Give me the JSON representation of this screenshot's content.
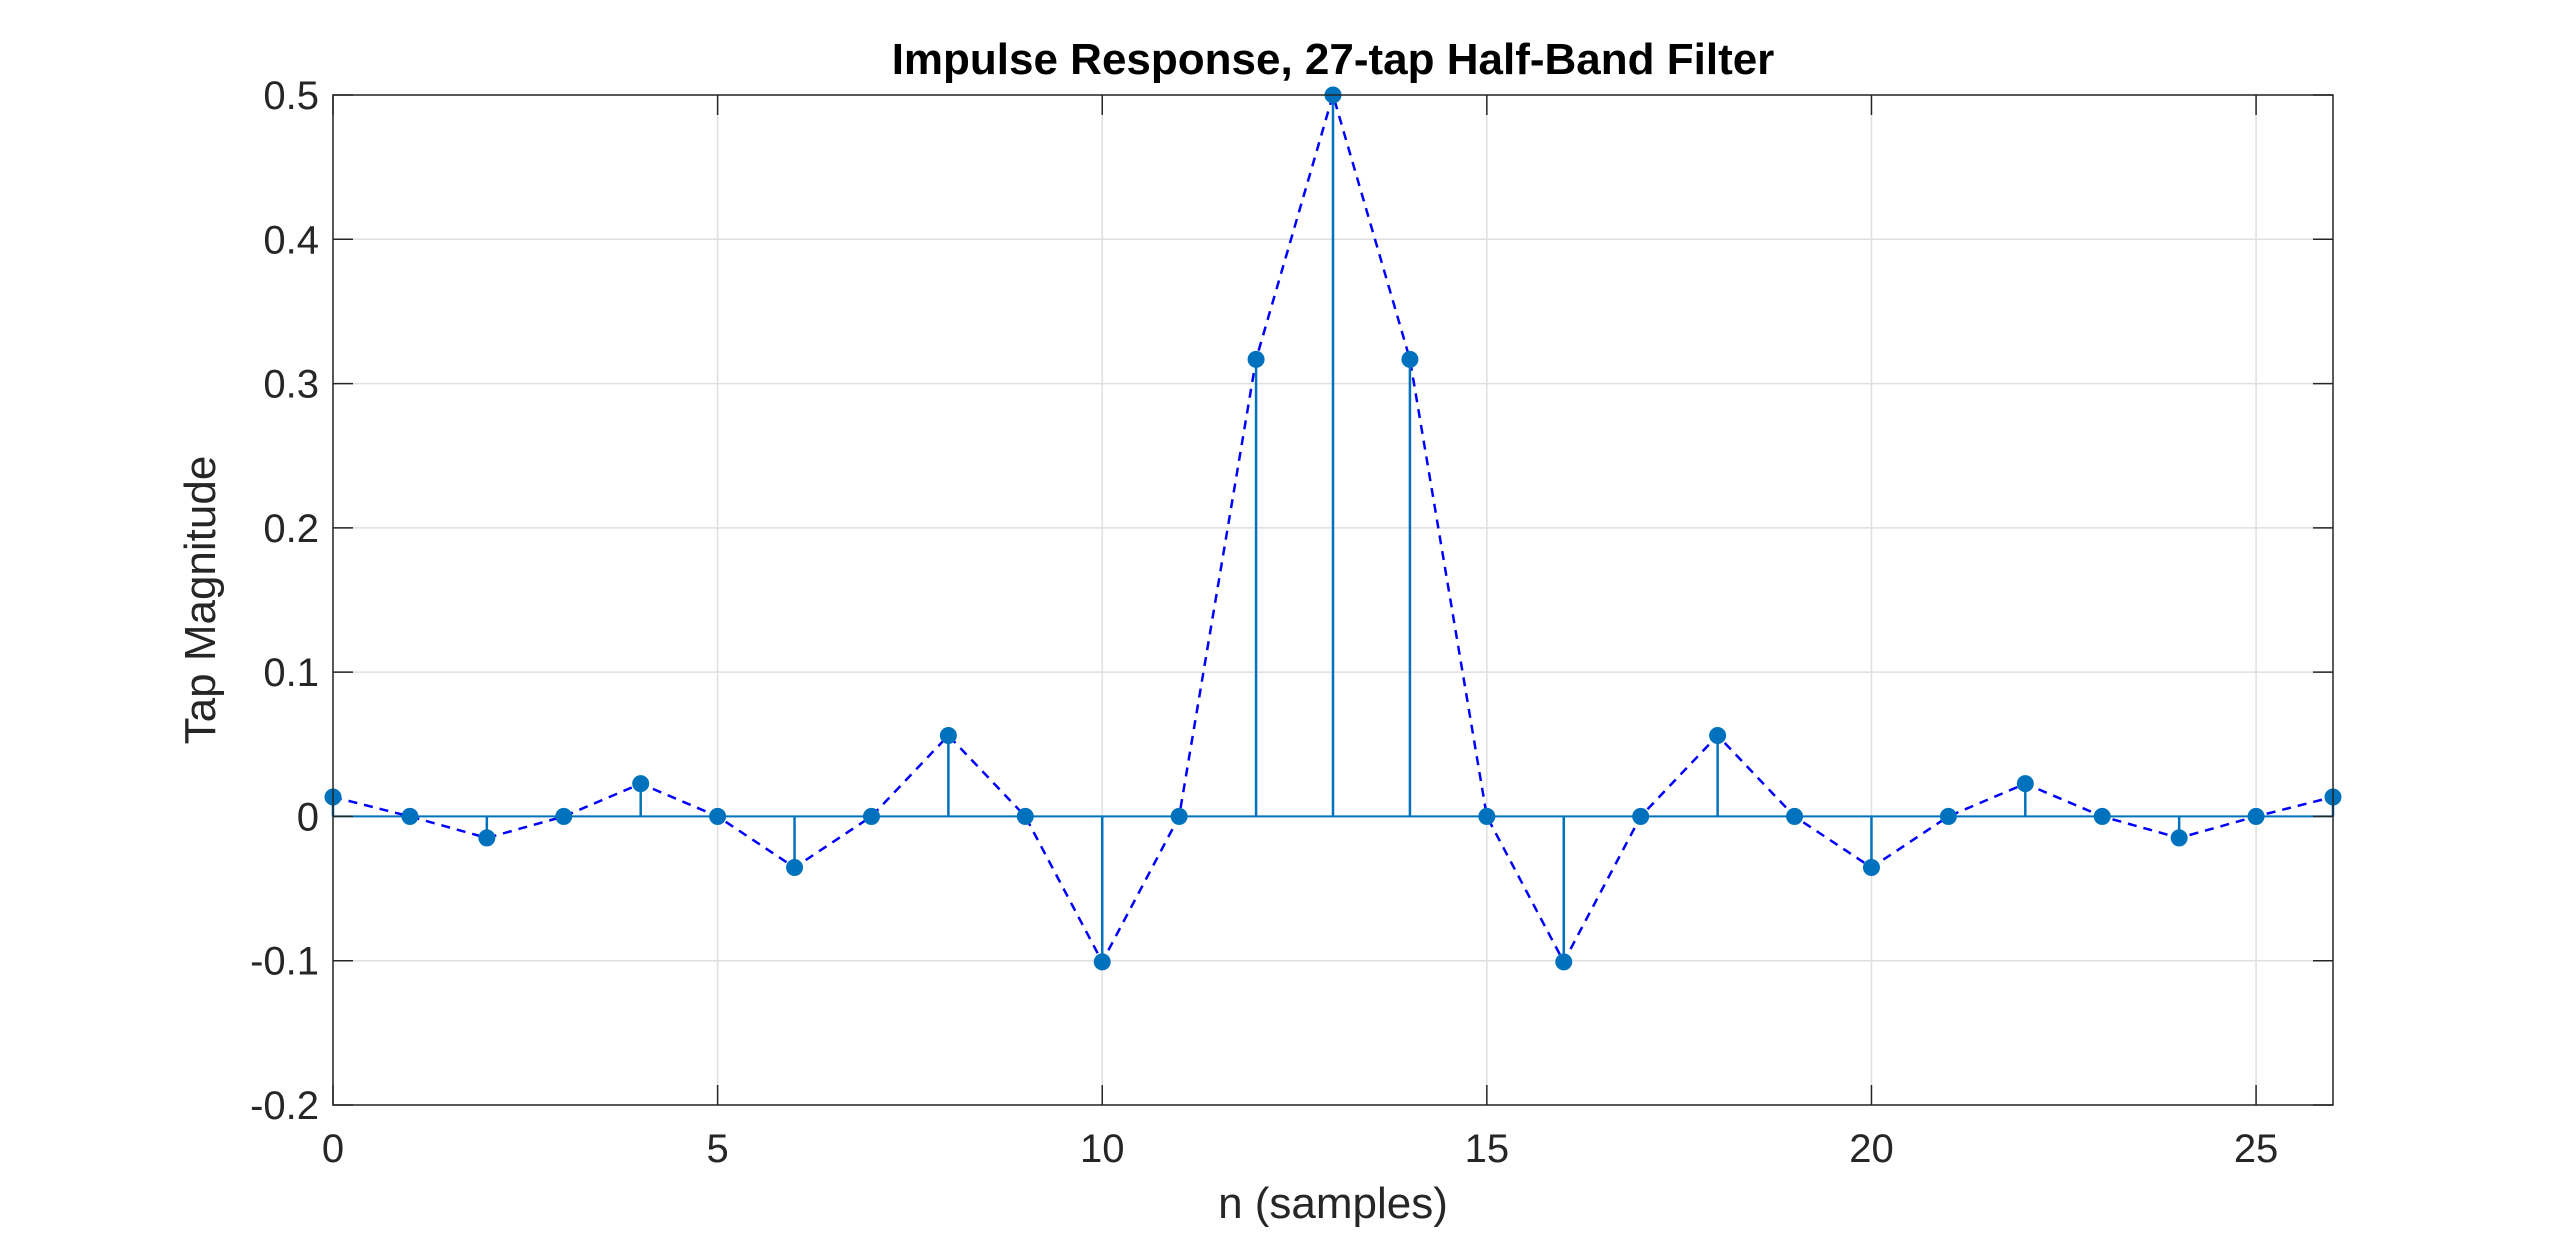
{
  "chart_data": {
    "type": "stem",
    "title": "Impulse Response, 27-tap Half-Band Filter",
    "xlabel": "n (samples)",
    "ylabel": "Tap Magnitude",
    "xlim": [
      0,
      26
    ],
    "ylim": [
      -0.2,
      0.5
    ],
    "grid": true,
    "xticks": [
      0,
      5,
      10,
      15,
      20,
      25
    ],
    "xtick_labels": [
      "0",
      "5",
      "10",
      "15",
      "20",
      "25"
    ],
    "yticks": [
      -0.2,
      -0.1,
      0,
      0.1,
      0.2,
      0.3,
      0.4,
      0.5
    ],
    "ytick_labels": [
      "-0.2",
      "-0.1",
      "0",
      "0.1",
      "0.2",
      "0.3",
      "0.4",
      "0.5"
    ],
    "x": [
      0,
      1,
      2,
      3,
      4,
      5,
      6,
      7,
      8,
      9,
      10,
      11,
      12,
      13,
      14,
      15,
      16,
      17,
      18,
      19,
      20,
      21,
      22,
      23,
      24,
      25,
      26
    ],
    "values": [
      0.0135,
      0,
      -0.0149,
      0,
      0.0227,
      0,
      -0.0354,
      0,
      0.0561,
      0,
      -0.1008,
      0,
      0.3168,
      0.5,
      0.3168,
      0,
      -0.1008,
      0,
      0.0561,
      0,
      -0.0354,
      0,
      0.0227,
      0,
      -0.0149,
      0,
      0.0135
    ],
    "stem_color": "#0072BD",
    "marker_color": "#0072BD",
    "envelope_color": "#0000FF",
    "envelope_style": "dashed"
  }
}
